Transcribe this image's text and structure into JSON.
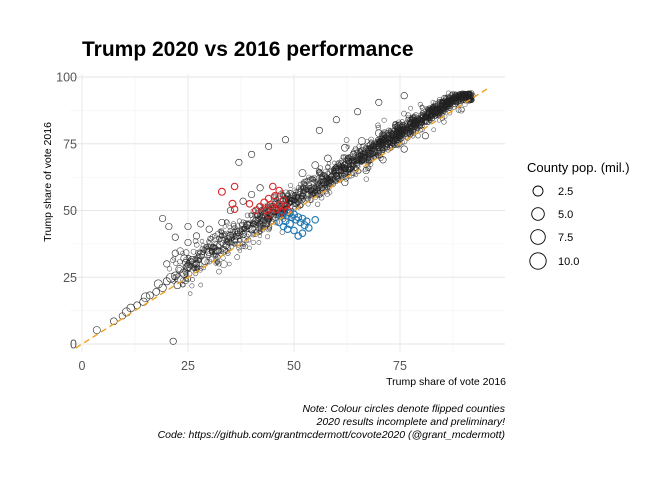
{
  "chart_data": {
    "type": "scatter",
    "title": "Trump 2020 vs 2016 performance",
    "xlabel": "Trump share of vote 2016",
    "ylabel": "Trump share of vote 2016",
    "xlim": [
      0,
      97
    ],
    "ylim": [
      -2,
      100
    ],
    "xticks": [
      0,
      25,
      50,
      75
    ],
    "yticks": [
      0,
      25,
      50,
      75,
      100
    ],
    "grid": true,
    "reference_line": {
      "type": "y=x",
      "style": "dashed",
      "color": "#f0a020"
    },
    "colors": {
      "unchanged": "#222222",
      "flipped_to_trump": "#d62728",
      "flipped_to_biden": "#1f77b4"
    },
    "legend": {
      "title": "County pop. (mil.)",
      "placement": "right",
      "entries": [
        {
          "label": "2.5",
          "value": 2.5
        },
        {
          "label": "5.0",
          "value": 5.0
        },
        {
          "label": "7.5",
          "value": 7.5
        },
        {
          "label": "10.0",
          "value": 10.0
        }
      ]
    },
    "caption": [
      "Note: Colour circles denote flipped counties",
      "2020 results incomplete and preliminary!",
      "Code: https://github.com/grantmcdermott/covote2020 (@grant_mcdermott)"
    ],
    "series": [
      {
        "group": "unchanged",
        "points": [
          [
            3.5,
            5.2,
            0.6
          ],
          [
            7.5,
            8.5,
            0.5
          ],
          [
            9.5,
            10.5,
            0.4
          ],
          [
            10.5,
            12.0,
            1.0
          ],
          [
            11.5,
            13.5,
            0.8
          ],
          [
            13,
            14.5,
            0.5
          ],
          [
            14.5,
            15.8,
            0.7
          ],
          [
            15,
            17.5,
            1.2
          ],
          [
            16,
            18.2,
            0.6
          ],
          [
            17.5,
            19.5,
            0.5
          ],
          [
            18,
            22.5,
            0.9
          ],
          [
            19,
            21.0,
            0.7
          ],
          [
            20,
            23.5,
            0.6
          ],
          [
            21,
            24.8,
            1.3
          ],
          [
            22,
            25.5,
            0.8
          ],
          [
            22.5,
            22.0,
            0.5
          ],
          [
            23,
            28.0,
            0.7
          ],
          [
            24,
            26.5,
            1.0
          ],
          [
            24.5,
            30.5,
            0.5
          ],
          [
            25,
            29.0,
            0.9
          ],
          [
            26,
            31.5,
            0.6
          ],
          [
            27,
            30.0,
            0.4
          ],
          [
            28,
            33.5,
            0.8
          ],
          [
            29,
            31.0,
            0.5
          ],
          [
            30,
            34.5,
            0.7
          ],
          [
            31,
            36.0,
            0.6
          ],
          [
            32,
            35.0,
            0.5
          ],
          [
            33,
            38.5,
            0.9
          ],
          [
            34,
            37.0,
            0.5
          ],
          [
            35,
            40.5,
            0.6
          ],
          [
            36,
            39.0,
            0.4
          ],
          [
            37,
            42.0,
            0.8
          ],
          [
            38,
            41.0,
            0.5
          ],
          [
            39,
            44.5,
            0.6
          ],
          [
            40,
            43.0,
            0.7
          ],
          [
            41,
            46.0,
            0.5
          ],
          [
            42,
            45.0,
            0.4
          ],
          [
            43,
            48.5,
            0.6
          ],
          [
            44,
            47.0,
            0.5
          ],
          [
            20,
            30.0,
            0.4
          ],
          [
            22,
            34.0,
            0.4
          ],
          [
            25,
            38.0,
            0.4
          ],
          [
            27,
            40.5,
            0.4
          ],
          [
            30,
            43.0,
            0.4
          ],
          [
            33,
            45.5,
            0.4
          ],
          [
            35,
            50.0,
            0.4
          ],
          [
            38,
            53.5,
            0.4
          ],
          [
            40,
            56.0,
            0.4
          ],
          [
            42,
            58.5,
            0.4
          ],
          [
            19,
            47.0,
            0.4
          ],
          [
            20.5,
            44.0,
            0.4
          ],
          [
            22,
            40.0,
            0.4
          ],
          [
            25,
            44.0,
            0.4
          ],
          [
            28,
            45.0,
            0.4
          ],
          [
            21.5,
            1.0,
            0.4
          ],
          [
            37,
            68.0,
            0.4
          ],
          [
            40,
            71.0,
            0.4
          ],
          [
            44,
            74.0,
            0.4
          ],
          [
            48,
            76.5,
            0.4
          ],
          [
            52,
            64.0,
            0.6
          ],
          [
            55,
            67.0,
            0.5
          ],
          [
            58,
            69.5,
            0.5
          ],
          [
            60,
            66.0,
            0.4
          ],
          [
            62,
            73.5,
            0.5
          ],
          [
            64,
            71.0,
            0.4
          ],
          [
            66,
            76.0,
            0.6
          ],
          [
            68,
            74.5,
            0.4
          ],
          [
            70,
            79.0,
            0.5
          ],
          [
            72,
            77.0,
            0.4
          ],
          [
            74,
            82.0,
            0.5
          ],
          [
            76,
            80.0,
            0.4
          ],
          [
            78,
            84.5,
            0.5
          ],
          [
            80,
            83.0,
            0.4
          ],
          [
            82,
            87.0,
            0.5
          ],
          [
            84,
            86.0,
            0.4
          ],
          [
            86,
            89.0,
            0.4
          ],
          [
            88,
            90.0,
            0.4
          ],
          [
            90,
            91.5,
            0.3
          ],
          [
            92,
            93.0,
            0.3
          ],
          [
            54,
            58.0,
            0.5
          ],
          [
            57,
            60.5,
            0.4
          ],
          [
            60,
            63.0,
            0.5
          ],
          [
            63,
            65.5,
            0.4
          ],
          [
            66,
            69.0,
            0.5
          ],
          [
            69,
            72.0,
            0.4
          ],
          [
            72,
            75.0,
            0.5
          ],
          [
            75,
            78.0,
            0.4
          ],
          [
            78,
            80.5,
            0.5
          ],
          [
            81,
            83.5,
            0.4
          ],
          [
            62,
            60.5,
            0.4
          ],
          [
            67,
            65.0,
            0.4
          ],
          [
            71,
            69.0,
            0.4
          ],
          [
            76,
            73.0,
            0.4
          ],
          [
            81,
            78.0,
            0.4
          ],
          [
            56,
            80.0,
            0.4
          ],
          [
            60,
            84.0,
            0.4
          ],
          [
            65,
            87.0,
            0.4
          ],
          [
            70,
            90.5,
            0.4
          ],
          [
            76,
            93.0,
            0.4
          ]
        ]
      },
      {
        "group": "flipped_to_trump",
        "points": [
          [
            33,
            57.0,
            0.5
          ],
          [
            36,
            59.0,
            0.4
          ],
          [
            35.5,
            52.5,
            0.5
          ],
          [
            36,
            50.5,
            0.4
          ],
          [
            39.5,
            52.5,
            0.4
          ],
          [
            41,
            50.0,
            0.4
          ],
          [
            43,
            53.0,
            0.5
          ],
          [
            44,
            54.5,
            0.4
          ],
          [
            44.5,
            52.0,
            0.5
          ],
          [
            45,
            51.0,
            0.4
          ],
          [
            45.5,
            55.5,
            0.4
          ],
          [
            46,
            50.5,
            0.5
          ],
          [
            46.5,
            52.0,
            0.4
          ],
          [
            47,
            49.5,
            0.5
          ],
          [
            47.5,
            54.0,
            0.4
          ],
          [
            48,
            51.5,
            0.4
          ],
          [
            48.5,
            50.0,
            0.5
          ],
          [
            46.5,
            57.5,
            0.4
          ],
          [
            45,
            59.0,
            0.4
          ],
          [
            44,
            48.5,
            0.4
          ],
          [
            43.5,
            50.0,
            0.5
          ],
          [
            42,
            51.5,
            0.4
          ]
        ]
      },
      {
        "group": "flipped_to_biden",
        "points": [
          [
            49,
            49.0,
            0.5
          ],
          [
            49.5,
            47.5,
            0.4
          ],
          [
            50,
            48.5,
            0.5
          ],
          [
            50.5,
            46.5,
            0.4
          ],
          [
            51,
            47.5,
            0.5
          ],
          [
            51.5,
            45.5,
            0.4
          ],
          [
            52,
            47.0,
            0.4
          ],
          [
            52.5,
            44.5,
            0.5
          ],
          [
            53,
            46.0,
            0.4
          ],
          [
            53.5,
            43.5,
            0.4
          ],
          [
            48,
            46.0,
            0.5
          ],
          [
            47.5,
            44.0,
            0.4
          ],
          [
            48.5,
            43.0,
            0.4
          ],
          [
            49,
            45.0,
            0.6
          ],
          [
            50,
            42.5,
            0.4
          ],
          [
            51,
            40.5,
            0.4
          ],
          [
            52,
            41.5,
            0.4
          ],
          [
            55,
            46.5,
            0.4
          ],
          [
            46.5,
            45.5,
            0.4
          ],
          [
            47,
            48.0,
            0.4
          ]
        ]
      }
    ]
  }
}
